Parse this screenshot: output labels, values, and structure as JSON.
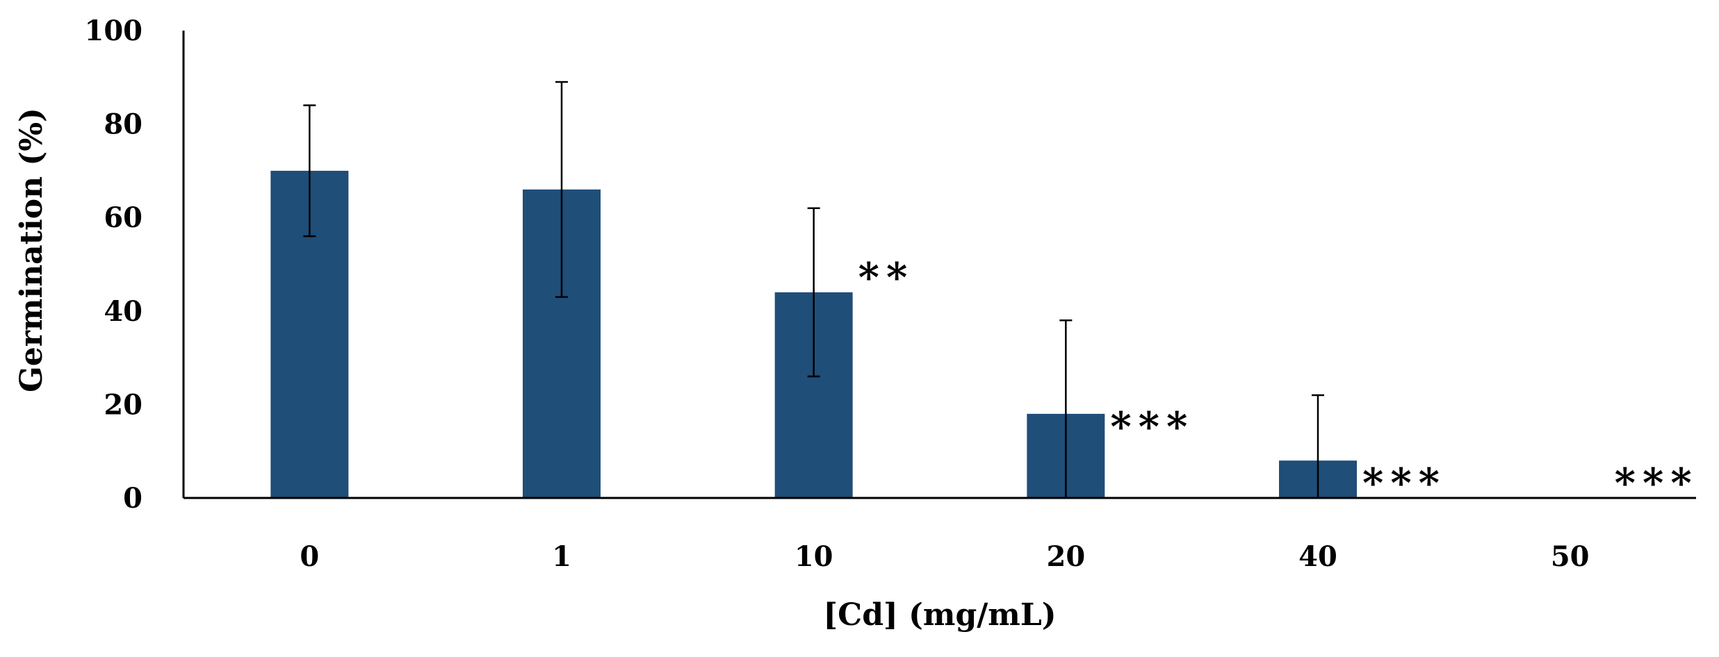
{
  "chart_data": {
    "type": "bar",
    "title": "",
    "xlabel": "[Cd] (mg/mL)",
    "ylabel": "Germination (%)",
    "ylim": [
      0,
      100
    ],
    "yticks": [
      0,
      20,
      40,
      60,
      80,
      100
    ],
    "categories": [
      "0",
      "1",
      "10",
      "20",
      "40",
      "50"
    ],
    "series": [
      {
        "name": "Germination",
        "color": "#1f4e79",
        "values": [
          70,
          66,
          44,
          18,
          8,
          0
        ],
        "error_high": [
          84,
          89,
          62,
          38,
          22,
          0
        ],
        "error_low": [
          56,
          43,
          26,
          0,
          0,
          0
        ]
      }
    ],
    "annotations": [
      "",
      "",
      "**",
      "***",
      "***",
      "***"
    ],
    "grid": false,
    "legend": "none"
  }
}
